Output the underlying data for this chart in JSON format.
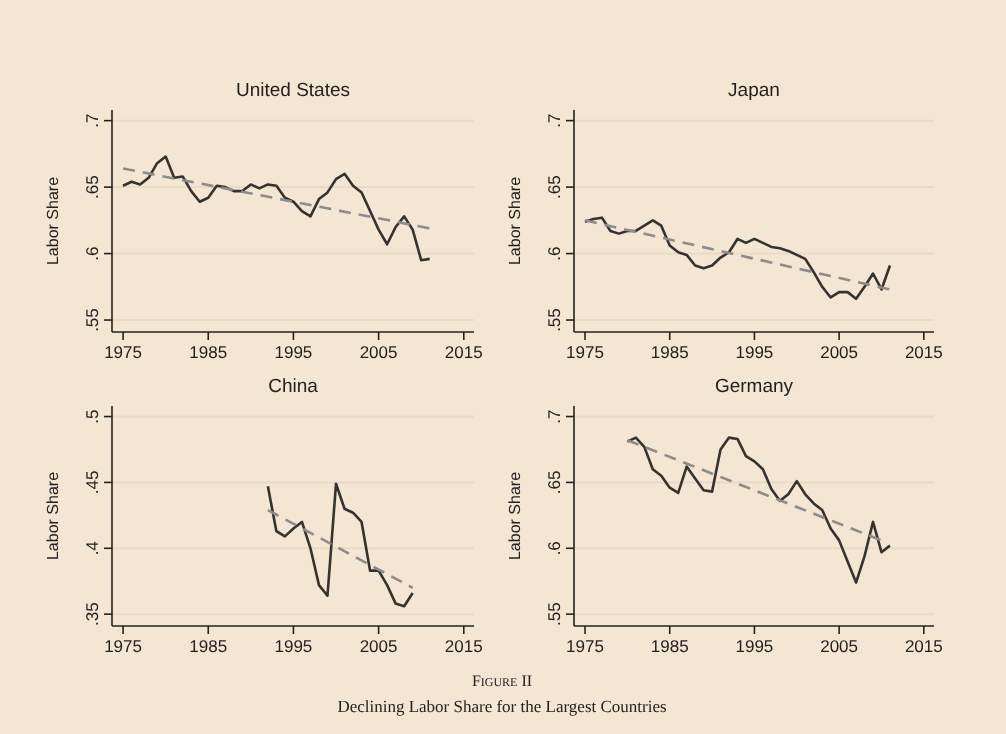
{
  "chart_data": [
    {
      "type": "line",
      "title": "United States",
      "ylabel": "Labor Share",
      "x": [
        1975,
        1976,
        1977,
        1978,
        1979,
        1980,
        1981,
        1982,
        1983,
        1984,
        1985,
        1986,
        1987,
        1988,
        1989,
        1990,
        1991,
        1992,
        1993,
        1994,
        1995,
        1996,
        1997,
        1998,
        1999,
        2000,
        2001,
        2002,
        2003,
        2004,
        2005,
        2006,
        2007,
        2008,
        2009,
        2010,
        2011
      ],
      "series": [
        {
          "color": "#333333",
          "values": [
            0.651,
            0.654,
            0.652,
            0.657,
            0.668,
            0.673,
            0.657,
            0.658,
            0.647,
            0.639,
            0.642,
            0.651,
            0.65,
            0.647,
            0.647,
            0.652,
            0.649,
            0.652,
            0.651,
            0.642,
            0.639,
            0.632,
            0.628,
            0.641,
            0.646,
            0.656,
            0.66,
            0.651,
            0.646,
            0.632,
            0.618,
            0.607,
            0.62,
            0.628,
            0.618,
            0.595,
            0.596
          ]
        },
        {
          "type": "line",
          "color": "#8c8c8c",
          "line_style": "dashed",
          "x": [
            1975,
            2011
          ],
          "values": [
            0.664,
            0.619
          ]
        }
      ],
      "xlim": [
        1973.7,
        2016.2
      ],
      "xticks": [
        1975,
        1985,
        1995,
        2005,
        2015
      ],
      "ylim": [
        0.541,
        0.708
      ],
      "yticks": [
        {
          "value": 0.55,
          "label": ".55"
        },
        {
          "value": 0.6,
          "label": ".6"
        },
        {
          "value": 0.65,
          "label": ".65"
        },
        {
          "value": 0.7,
          "label": ".7"
        }
      ],
      "grid": "y"
    },
    {
      "type": "line",
      "title": "Japan",
      "ylabel": "Labor Share",
      "x": [
        1975,
        1976,
        1977,
        1978,
        1979,
        1980,
        1981,
        1982,
        1983,
        1984,
        1985,
        1986,
        1987,
        1988,
        1989,
        1990,
        1991,
        1992,
        1993,
        1994,
        1995,
        1996,
        1997,
        1998,
        1999,
        2000,
        2001,
        2002,
        2003,
        2004,
        2005,
        2006,
        2007,
        2008,
        2009,
        2010,
        2011
      ],
      "series": [
        {
          "color": "#333333",
          "values": [
            0.624,
            0.626,
            0.627,
            0.617,
            0.615,
            0.617,
            0.617,
            0.621,
            0.625,
            0.621,
            0.606,
            0.601,
            0.599,
            0.591,
            0.589,
            0.591,
            0.597,
            0.601,
            0.611,
            0.608,
            0.611,
            0.608,
            0.605,
            0.604,
            0.602,
            0.599,
            0.596,
            0.586,
            0.575,
            0.567,
            0.571,
            0.571,
            0.566,
            0.575,
            0.585,
            0.573,
            0.591
          ]
        },
        {
          "type": "line",
          "color": "#8c8c8c",
          "line_style": "dashed",
          "x": [
            1975,
            2011
          ],
          "values": [
            0.625,
            0.573
          ]
        }
      ],
      "xlim": [
        1973.7,
        2016.2
      ],
      "xticks": [
        1975,
        1985,
        1995,
        2005,
        2015
      ],
      "ylim": [
        0.541,
        0.708
      ],
      "yticks": [
        {
          "value": 0.55,
          "label": ".55"
        },
        {
          "value": 0.6,
          "label": ".6"
        },
        {
          "value": 0.65,
          "label": ".65"
        },
        {
          "value": 0.7,
          "label": ".7"
        }
      ],
      "grid": "y"
    },
    {
      "type": "line",
      "title": "China",
      "ylabel": "Labor Share",
      "x": [
        1992,
        1993,
        1994,
        1995,
        1996,
        1997,
        1998,
        1999,
        2000,
        2001,
        2002,
        2003,
        2004,
        2005,
        2006,
        2007,
        2008,
        2009
      ],
      "series": [
        {
          "color": "#333333",
          "values": [
            0.447,
            0.413,
            0.409,
            0.415,
            0.42,
            0.4,
            0.372,
            0.364,
            0.449,
            0.43,
            0.427,
            0.42,
            0.383,
            0.383,
            0.372,
            0.358,
            0.356,
            0.366
          ]
        },
        {
          "type": "line",
          "color": "#8c8c8c",
          "line_style": "dashed",
          "x": [
            1992,
            2009
          ],
          "values": [
            0.429,
            0.37
          ]
        }
      ],
      "xlim": [
        1973.7,
        2016.2
      ],
      "xticks": [
        1975,
        1985,
        1995,
        2005,
        2015
      ],
      "ylim": [
        0.341,
        0.508
      ],
      "yticks": [
        {
          "value": 0.35,
          "label": ".35"
        },
        {
          "value": 0.4,
          "label": ".4"
        },
        {
          "value": 0.45,
          "label": ".45"
        },
        {
          "value": 0.5,
          "label": ".5"
        }
      ],
      "grid": "y"
    },
    {
      "type": "line",
      "title": "Germany",
      "ylabel": "Labor Share",
      "x": [
        1980,
        1981,
        1982,
        1983,
        1984,
        1985,
        1986,
        1987,
        1988,
        1989,
        1990,
        1991,
        1992,
        1993,
        1994,
        1995,
        1996,
        1997,
        1998,
        1999,
        2000,
        2001,
        2002,
        2003,
        2004,
        2005,
        2006,
        2007,
        2008,
        2009,
        2010,
        2011
      ],
      "series": [
        {
          "color": "#333333",
          "values": [
            0.681,
            0.684,
            0.677,
            0.66,
            0.655,
            0.646,
            0.642,
            0.662,
            0.653,
            0.644,
            0.643,
            0.675,
            0.684,
            0.683,
            0.67,
            0.666,
            0.66,
            0.645,
            0.636,
            0.641,
            0.651,
            0.641,
            0.634,
            0.629,
            0.615,
            0.606,
            0.59,
            0.574,
            0.594,
            0.62,
            0.597,
            0.602
          ]
        },
        {
          "type": "line",
          "color": "#8c8c8c",
          "line_style": "dashed",
          "x": [
            1980,
            2010
          ],
          "values": [
            0.682,
            0.606
          ]
        }
      ],
      "xlim": [
        1973.7,
        2016.2
      ],
      "xticks": [
        1975,
        1985,
        1995,
        2005,
        2015
      ],
      "ylim": [
        0.541,
        0.708
      ],
      "yticks": [
        {
          "value": 0.55,
          "label": ".55"
        },
        {
          "value": 0.6,
          "label": ".6"
        },
        {
          "value": 0.65,
          "label": ".65"
        },
        {
          "value": 0.7,
          "label": ".7"
        }
      ],
      "grid": "y",
      "annotations": [
        "Figure II",
        "Declining Labor Share for the Largest Countries"
      ]
    }
  ]
}
